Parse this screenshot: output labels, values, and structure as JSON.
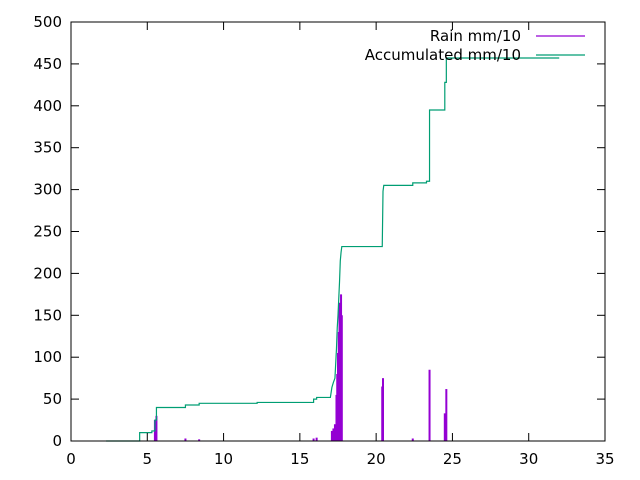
{
  "chart_data": {
    "type": "line",
    "title": "",
    "xlabel": "",
    "ylabel": "",
    "xlim": [
      0,
      35
    ],
    "ylim": [
      0,
      500
    ],
    "grid": false,
    "legend_position": "top-right",
    "x_ticks": [
      "0",
      "5",
      "10",
      "15",
      "20",
      "25",
      "30",
      "35"
    ],
    "y_ticks": [
      "0",
      "50",
      "100",
      "150",
      "200",
      "250",
      "300",
      "350",
      "400",
      "450",
      "500"
    ],
    "series": [
      {
        "name": "Rain mm/10",
        "style": "impulses",
        "color": "#9400d3",
        "points": [
          [
            5.5,
            25
          ],
          [
            5.6,
            30
          ],
          [
            7.5,
            3
          ],
          [
            8.4,
            2
          ],
          [
            15.9,
            3
          ],
          [
            16.1,
            4
          ],
          [
            17.1,
            12
          ],
          [
            17.2,
            15
          ],
          [
            17.3,
            20
          ],
          [
            17.4,
            55
          ],
          [
            17.45,
            80
          ],
          [
            17.5,
            105
          ],
          [
            17.55,
            130
          ],
          [
            17.6,
            165
          ],
          [
            17.65,
            160
          ],
          [
            17.7,
            175
          ],
          [
            17.75,
            150
          ],
          [
            20.4,
            65
          ],
          [
            20.45,
            75
          ],
          [
            22.4,
            3
          ],
          [
            23.5,
            85
          ],
          [
            24.5,
            33
          ],
          [
            24.6,
            62
          ]
        ]
      },
      {
        "name": "Accumulated mm/10",
        "style": "line",
        "color": "#009e73",
        "points": [
          [
            2.3,
            0
          ],
          [
            4.5,
            0
          ],
          [
            4.5,
            10
          ],
          [
            5.3,
            10
          ],
          [
            5.3,
            12
          ],
          [
            5.5,
            12
          ],
          [
            5.5,
            25
          ],
          [
            5.6,
            25
          ],
          [
            5.6,
            40
          ],
          [
            7.5,
            40
          ],
          [
            7.5,
            43
          ],
          [
            8.4,
            43
          ],
          [
            8.4,
            45
          ],
          [
            12.2,
            45
          ],
          [
            12.2,
            46
          ],
          [
            15.9,
            46
          ],
          [
            15.9,
            50
          ],
          [
            16.1,
            50
          ],
          [
            16.1,
            52
          ],
          [
            17.0,
            52
          ],
          [
            17.1,
            64
          ],
          [
            17.2,
            70
          ],
          [
            17.3,
            75
          ],
          [
            17.4,
            110
          ],
          [
            17.45,
            135
          ],
          [
            17.5,
            150
          ],
          [
            17.55,
            170
          ],
          [
            17.6,
            190
          ],
          [
            17.65,
            215
          ],
          [
            17.7,
            225
          ],
          [
            17.75,
            232
          ],
          [
            20.4,
            232
          ],
          [
            20.45,
            298
          ],
          [
            20.5,
            305
          ],
          [
            22.4,
            305
          ],
          [
            22.4,
            308
          ],
          [
            23.3,
            308
          ],
          [
            23.3,
            310
          ],
          [
            23.5,
            310
          ],
          [
            23.5,
            395
          ],
          [
            24.5,
            395
          ],
          [
            24.5,
            428
          ],
          [
            24.6,
            428
          ],
          [
            24.6,
            457
          ],
          [
            32.0,
            457
          ]
        ]
      }
    ]
  }
}
